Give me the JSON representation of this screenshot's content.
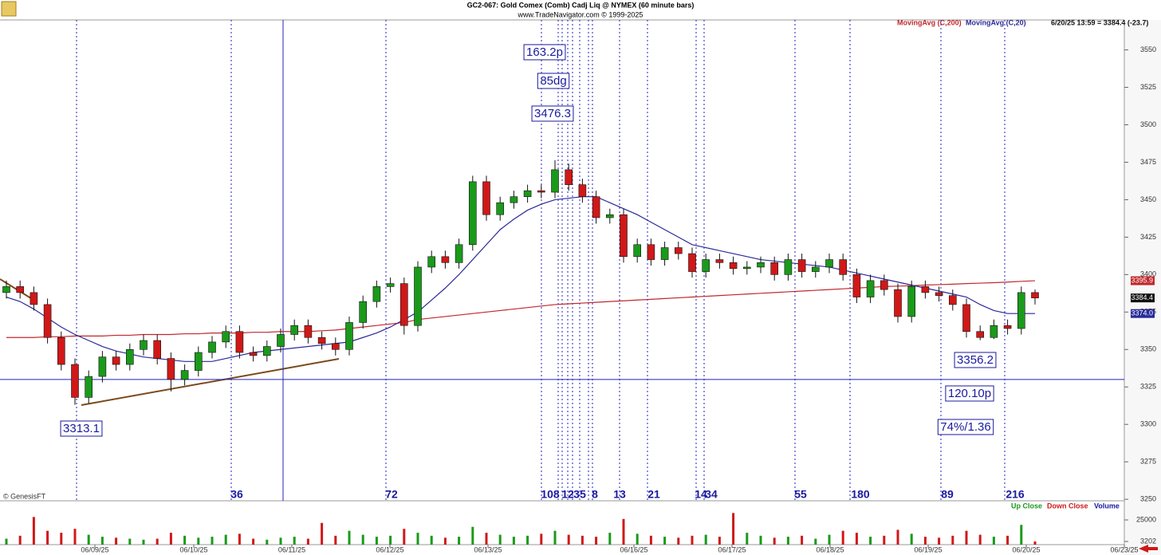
{
  "chart_data": {
    "type": "candlestick",
    "title": "GC2-067:  Gold Comex (Comb) Cadj Liq @ NYMEX  (60 minute bars)",
    "subtitle": "www.TradeNavigator.com © 1999-2025",
    "credit": "© GenesisFT",
    "last_quote": "6/20/25 13:59 = 3384.4 (-23.7)",
    "last_close_label": "3384.4",
    "ylim": [
      3249,
      3570
    ],
    "yticks": [
      3250,
      3275,
      3300,
      3325,
      3350,
      3375,
      3400,
      3425,
      3450,
      3475,
      3500,
      3525,
      3550
    ],
    "up_color": "#1a9a1a",
    "down_color": "#d01818",
    "hline": 3330,
    "x_labels": [
      "06/09/25",
      "06/10/25",
      "06/11/25",
      "06/12/25",
      "06/13/25",
      "06/16/25",
      "06/17/25",
      "06/18/25",
      "06/19/25",
      "06/20/25",
      "06/23/25"
    ],
    "cycle_labels": [
      "36",
      "72",
      "108",
      "12",
      "3",
      "5",
      "8",
      "13",
      "21",
      "14",
      "34",
      "55",
      "180",
      "89",
      "216"
    ],
    "annotations": [
      "163.2p",
      "85dg",
      "3476.3",
      "3313.1",
      "3356.2",
      "120.10p",
      "74%/1.36"
    ],
    "candles": {
      "open": [
        3388,
        3392,
        3388,
        3380,
        3358,
        3340,
        3318,
        3332,
        3345,
        3340,
        3350,
        3356,
        3344,
        3330,
        3336,
        3348,
        3355,
        3362,
        3348,
        3346,
        3352,
        3360,
        3366,
        3358,
        3354,
        3350,
        3368,
        3382,
        3392,
        3394,
        3366,
        3405,
        3412,
        3408,
        3420,
        3462,
        3440,
        3448,
        3452,
        3456,
        3455,
        3470,
        3460,
        3452,
        3438,
        3440,
        3412,
        3420,
        3410,
        3418,
        3414,
        3402,
        3410,
        3408,
        3404,
        3405,
        3408,
        3400,
        3410,
        3402,
        3405,
        3410,
        3400,
        3385,
        3396,
        3390,
        3372,
        3392,
        3388,
        3386,
        3380,
        3362,
        3358,
        3366,
        3364,
        3388
      ],
      "high": [
        3396,
        3396,
        3392,
        3384,
        3362,
        3344,
        3336,
        3349,
        3349,
        3354,
        3360,
        3360,
        3348,
        3340,
        3352,
        3359,
        3366,
        3366,
        3352,
        3356,
        3364,
        3370,
        3370,
        3362,
        3358,
        3372,
        3386,
        3396,
        3398,
        3398,
        3409,
        3416,
        3416,
        3424,
        3466,
        3466,
        3452,
        3456,
        3460,
        3460,
        3476.3,
        3474,
        3464,
        3456,
        3444,
        3444,
        3424,
        3424,
        3422,
        3422,
        3418,
        3414,
        3414,
        3412,
        3409,
        3412,
        3412,
        3414,
        3414,
        3409,
        3414,
        3414,
        3404,
        3400,
        3400,
        3394,
        3396,
        3396,
        3392,
        3390,
        3384,
        3366,
        3370,
        3370,
        3392,
        3390
      ],
      "low": [
        3384,
        3384,
        3376,
        3354,
        3336,
        3313.1,
        3314,
        3328,
        3336,
        3336,
        3346,
        3340,
        3322,
        3326,
        3332,
        3344,
        3351,
        3344,
        3342,
        3342,
        3348,
        3356,
        3354,
        3350,
        3346,
        3346,
        3364,
        3378,
        3388,
        3360,
        3362,
        3401,
        3404,
        3404,
        3416,
        3436,
        3436,
        3444,
        3448,
        3451,
        3451,
        3456,
        3448,
        3434,
        3434,
        3408,
        3408,
        3406,
        3406,
        3410,
        3398,
        3398,
        3404,
        3400,
        3400,
        3401,
        3396,
        3396,
        3398,
        3398,
        3401,
        3396,
        3381,
        3381,
        3386,
        3368,
        3368,
        3384,
        3382,
        3376,
        3358,
        3356.2,
        3357,
        3360,
        3360,
        3380
      ],
      "close": [
        3392,
        3388,
        3380,
        3358,
        3340,
        3318,
        3332,
        3345,
        3340,
        3350,
        3356,
        3344,
        3330,
        3336,
        3348,
        3355,
        3362,
        3348,
        3346,
        3352,
        3360,
        3366,
        3358,
        3354,
        3350,
        3368,
        3382,
        3392,
        3394,
        3366,
        3405,
        3412,
        3408,
        3420,
        3462,
        3440,
        3448,
        3452,
        3456,
        3455,
        3470,
        3460,
        3452,
        3438,
        3440,
        3412,
        3420,
        3410,
        3418,
        3414,
        3402,
        3410,
        3408,
        3404,
        3405,
        3408,
        3400,
        3410,
        3402,
        3405,
        3410,
        3400,
        3385,
        3396,
        3390,
        3372,
        3392,
        3388,
        3386,
        3380,
        3362,
        3358,
        3366,
        3364,
        3388,
        3384.4
      ]
    },
    "series": [
      {
        "name": "MovingAvg (C,200)",
        "color": "#c0282d",
        "last_label": "3395.9",
        "values": [
          3358,
          3358,
          3358,
          3358.5,
          3358.5,
          3359,
          3359,
          3359,
          3359.5,
          3359.5,
          3360,
          3360,
          3360,
          3360.5,
          3360.5,
          3361,
          3361,
          3361,
          3361.5,
          3361.5,
          3362,
          3362,
          3362,
          3362.5,
          3363,
          3364,
          3365,
          3366,
          3367,
          3368,
          3370,
          3371,
          3372,
          3373,
          3374,
          3375,
          3376,
          3377,
          3378,
          3379,
          3380,
          3380.5,
          3381,
          3381.5,
          3382,
          3382.5,
          3383,
          3383.5,
          3384,
          3384.5,
          3385,
          3385.5,
          3386,
          3386.5,
          3387,
          3387.5,
          3388,
          3388.5,
          3389,
          3389.5,
          3390,
          3390.5,
          3391,
          3391.5,
          3392,
          3392.3,
          3392.6,
          3393,
          3393.3,
          3393.6,
          3394,
          3394.3,
          3394.6,
          3395,
          3395.5,
          3395.9
        ]
      },
      {
        "name": "MovingAvg (C,20)",
        "color": "#2a2a9a",
        "last_label": "3374.0",
        "values": [
          3385,
          3382,
          3377,
          3371,
          3365,
          3360,
          3356,
          3352,
          3349,
          3347,
          3345,
          3344,
          3343,
          3342,
          3342,
          3342,
          3344,
          3346,
          3348,
          3349,
          3350,
          3351,
          3352,
          3353,
          3354,
          3355,
          3358,
          3361,
          3365,
          3370,
          3375,
          3383,
          3391,
          3400,
          3410,
          3420,
          3430,
          3437,
          3443,
          3447,
          3450,
          3451,
          3452,
          3452,
          3448,
          3444,
          3440,
          3435,
          3430,
          3425,
          3420,
          3418,
          3416,
          3414,
          3412,
          3410,
          3409,
          3408,
          3407,
          3406,
          3405,
          3403,
          3401,
          3399,
          3397,
          3395,
          3393,
          3391,
          3389,
          3387,
          3385,
          3380,
          3376,
          3374,
          3374,
          3374
        ]
      }
    ],
    "volume": {
      "up_label": "Up Close",
      "down_label": "Down Close",
      "label": "Volume",
      "color": "#1a1aa0",
      "ylim": [
        0,
        34700
      ],
      "yticks": [
        25000,
        3202
      ],
      "values": [
        6000,
        9000,
        28000,
        14000,
        12000,
        16000,
        10000,
        8000,
        7000,
        6000,
        5000,
        6000,
        12000,
        9000,
        7000,
        8000,
        10000,
        11000,
        6000,
        5000,
        7000,
        8000,
        6000,
        22000,
        9000,
        14000,
        10000,
        8000,
        9000,
        16000,
        12000,
        9000,
        7000,
        8000,
        18000,
        12000,
        10000,
        8000,
        9000,
        11000,
        14000,
        10000,
        9000,
        8000,
        12000,
        26000,
        11000,
        9000,
        8000,
        7000,
        9000,
        10000,
        8000,
        32000,
        12000,
        9000,
        7000,
        8000,
        9000,
        6000,
        10000,
        14000,
        12000,
        8000,
        9000,
        15000,
        11000,
        8000,
        7000,
        9000,
        14000,
        10000,
        8000,
        9000,
        20000,
        3202
      ]
    }
  }
}
